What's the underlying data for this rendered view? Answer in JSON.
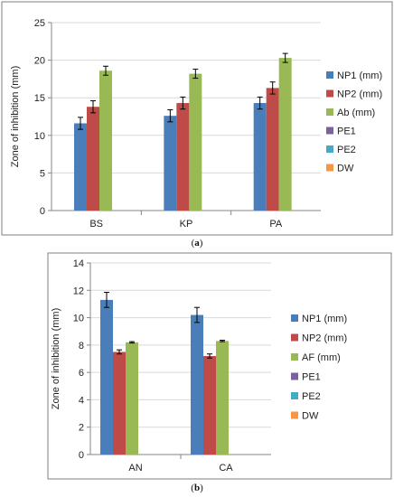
{
  "colors": {
    "frame": "#7f7f7f",
    "axis": "#868686",
    "grid": "#d9d9d9",
    "series": [
      "#4a7ebb",
      "#be4b48",
      "#98b954",
      "#7d60a0",
      "#46aac5",
      "#f79646"
    ]
  },
  "chart_data": [
    {
      "type": "bar",
      "caption": "(a)",
      "caption_letter": "a",
      "ylabel": "Zone of inhibition (mm)",
      "xlabel": "",
      "ylim": [
        0,
        25
      ],
      "yticks": [
        "0",
        "5",
        "10",
        "15",
        "20",
        "25"
      ],
      "ytick_values": [
        0,
        5,
        10,
        15,
        20,
        25
      ],
      "grid": true,
      "legend_position": "right",
      "categories": [
        "BS",
        "KP",
        "PA"
      ],
      "series": [
        {
          "name": "NP1 (mm)",
          "values": [
            11.6,
            12.6,
            14.3
          ],
          "errors": [
            0.8,
            0.8,
            0.8
          ]
        },
        {
          "name": "NP2 (mm)",
          "values": [
            13.8,
            14.3,
            16.3
          ],
          "errors": [
            0.8,
            0.8,
            0.8
          ]
        },
        {
          "name": "Ab (mm)",
          "values": [
            18.6,
            18.2,
            20.3
          ],
          "errors": [
            0.6,
            0.6,
            0.6
          ]
        },
        {
          "name": "PE1",
          "values": [
            0,
            0,
            0
          ],
          "errors": [
            0,
            0,
            0
          ]
        },
        {
          "name": "PE2",
          "values": [
            0,
            0,
            0
          ],
          "errors": [
            0,
            0,
            0
          ]
        },
        {
          "name": "DW",
          "values": [
            0,
            0,
            0
          ],
          "errors": [
            0,
            0,
            0
          ]
        }
      ]
    },
    {
      "type": "bar",
      "caption": "(b)",
      "caption_letter": "b",
      "ylabel": "Zone of inhibition (mm)",
      "xlabel": "",
      "ylim": [
        0,
        14
      ],
      "yticks": [
        "0",
        "2",
        "4",
        "6",
        "8",
        "10",
        "12",
        "14"
      ],
      "ytick_values": [
        0,
        2,
        4,
        6,
        8,
        10,
        12,
        14
      ],
      "grid": true,
      "legend_position": "right",
      "categories": [
        "AN",
        "CA"
      ],
      "series": [
        {
          "name": "NP1 (mm)",
          "values": [
            11.3,
            10.2
          ],
          "errors": [
            0.55,
            0.55
          ]
        },
        {
          "name": "NP2 (mm)",
          "values": [
            7.5,
            7.2
          ],
          "errors": [
            0.15,
            0.15
          ]
        },
        {
          "name": "AF (mm)",
          "values": [
            8.2,
            8.3
          ],
          "errors": [
            0.05,
            0.05
          ]
        },
        {
          "name": "PE1",
          "values": [
            0,
            0
          ],
          "errors": [
            0,
            0
          ]
        },
        {
          "name": "PE2",
          "values": [
            0,
            0
          ],
          "errors": [
            0,
            0
          ]
        },
        {
          "name": "DW",
          "values": [
            0,
            0
          ],
          "errors": [
            0,
            0
          ]
        }
      ]
    }
  ]
}
